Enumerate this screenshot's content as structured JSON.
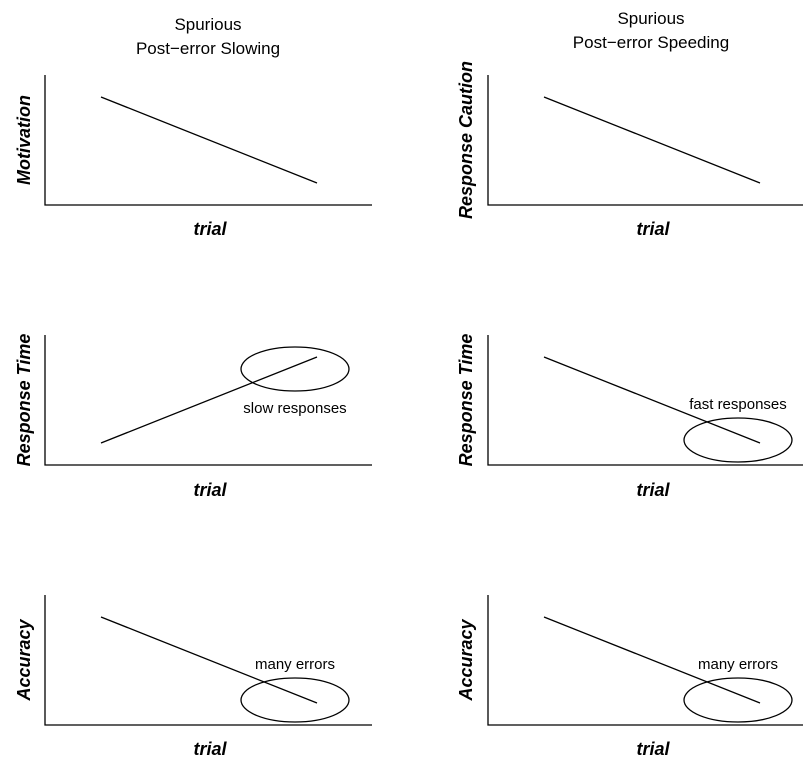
{
  "columns": [
    {
      "title_line1": "Spurious",
      "title_line2": "Post−error Slowing"
    },
    {
      "title_line1": "Spurious",
      "title_line2": "Post−error Speeding"
    }
  ],
  "colors": {
    "line": "#000000",
    "background": "#ffffff"
  },
  "chart_data": [
    {
      "type": "line",
      "panel": "top-left",
      "ylabel": "Motivation",
      "xlabel": "trial",
      "series": [
        {
          "x": [
            0,
            1
          ],
          "values": [
            1,
            0
          ]
        }
      ],
      "annotation": null
    },
    {
      "type": "line",
      "panel": "top-right",
      "ylabel": "Response Caution",
      "xlabel": "trial",
      "series": [
        {
          "x": [
            0,
            1
          ],
          "values": [
            1,
            0
          ]
        }
      ],
      "annotation": null
    },
    {
      "type": "line",
      "panel": "middle-left",
      "ylabel": "Response Time",
      "xlabel": "trial",
      "series": [
        {
          "x": [
            0,
            1
          ],
          "values": [
            0,
            1
          ]
        }
      ],
      "annotation": {
        "text": "slow responses",
        "highlight": "end",
        "text_position": "below"
      }
    },
    {
      "type": "line",
      "panel": "middle-right",
      "ylabel": "Response Time",
      "xlabel": "trial",
      "series": [
        {
          "x": [
            0,
            1
          ],
          "values": [
            1,
            0
          ]
        }
      ],
      "annotation": {
        "text": "fast responses",
        "highlight": "end",
        "text_position": "above"
      }
    },
    {
      "type": "line",
      "panel": "bottom-left",
      "ylabel": "Accuracy",
      "xlabel": "trial",
      "series": [
        {
          "x": [
            0,
            1
          ],
          "values": [
            1,
            0
          ]
        }
      ],
      "annotation": {
        "text": "many errors",
        "highlight": "end",
        "text_position": "above"
      }
    },
    {
      "type": "line",
      "panel": "bottom-right",
      "ylabel": "Accuracy",
      "xlabel": "trial",
      "series": [
        {
          "x": [
            0,
            1
          ],
          "values": [
            1,
            0
          ]
        }
      ],
      "annotation": {
        "text": "many errors",
        "highlight": "end",
        "text_position": "above"
      }
    }
  ]
}
